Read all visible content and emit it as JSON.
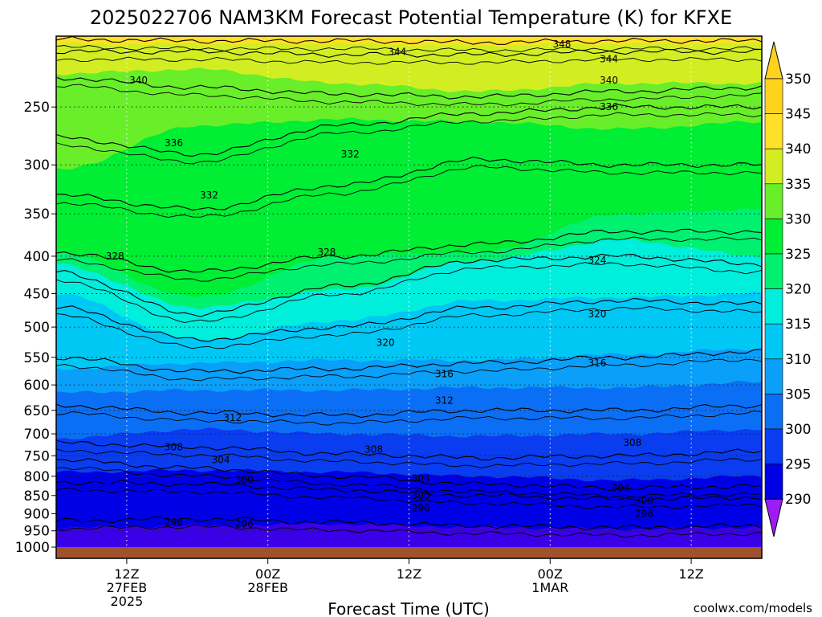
{
  "chart_data": {
    "type": "heatmap",
    "title": "2025022706 NAM3KM Forecast Potential Temperature (K) for KFXE",
    "xlabel": "Forecast Time (UTC)",
    "ylabel": "",
    "y_scale": "log",
    "y_axis_reversed": true,
    "ylim": [
      1000,
      200
    ],
    "y_ticks": [
      250,
      300,
      350,
      400,
      450,
      500,
      550,
      600,
      650,
      700,
      750,
      800,
      850,
      900,
      950,
      1000
    ],
    "x_ticks": [
      {
        "hour": 12,
        "label": "12Z",
        "sub": "27FEB",
        "sub2": "2025"
      },
      {
        "hour": 24,
        "label": "00Z",
        "sub": "28FEB",
        "sub2": ""
      },
      {
        "hour": 36,
        "label": "12Z",
        "sub": "",
        "sub2": ""
      },
      {
        "hour": 48,
        "label": "00Z",
        "sub": "1MAR",
        "sub2": ""
      },
      {
        "hour": 60,
        "label": "12Z",
        "sub": "",
        "sub2": ""
      }
    ],
    "xlim": [
      6,
      66
    ],
    "colorbar": {
      "labels": [
        290,
        295,
        300,
        305,
        310,
        315,
        320,
        325,
        330,
        335,
        340,
        345,
        350
      ],
      "colors": [
        "#9b1df2",
        "#3a00e8",
        "#0000e6",
        "#0a3cf0",
        "#0b6ff6",
        "#0a9ff8",
        "#00c8f5",
        "#00eedc",
        "#00f070",
        "#00ee33",
        "#69ee2a",
        "#d2ee22",
        "#ffe028",
        "#ffd21e"
      ]
    },
    "fill_levels": [
      {
        "value": 350,
        "p": [
          200,
          200,
          200,
          200,
          200,
          200
        ]
      },
      {
        "value": 345,
        "p": [
          205,
          205,
          205,
          206,
          205,
          205
        ]
      },
      {
        "value": 340,
        "p": [
          225,
          222,
          232,
          238,
          232,
          232
        ]
      },
      {
        "value": 335,
        "p": [
          305,
          265,
          260,
          262,
          268,
          262
        ]
      },
      {
        "value": 330,
        "p": [
          395,
          455,
          400,
          395,
          350,
          345
        ]
      },
      {
        "value": 325,
        "p": [
          410,
          470,
          445,
          405,
          380,
          400
        ]
      },
      {
        "value": 320,
        "p": [
          450,
          520,
          490,
          460,
          455,
          450
        ]
      },
      {
        "value": 315,
        "p": [
          570,
          560,
          555,
          555,
          545,
          535
        ]
      },
      {
        "value": 310,
        "p": [
          615,
          610,
          610,
          605,
          605,
          595
        ]
      },
      {
        "value": 305,
        "p": [
          710,
          690,
          700,
          705,
          700,
          690
        ]
      },
      {
        "value": 300,
        "p": [
          790,
          785,
          790,
          800,
          810,
          800
        ]
      },
      {
        "value": 295,
        "p": [
          940,
          935,
          930,
          940,
          945,
          940
        ]
      }
    ],
    "contours": [
      {
        "value": 296,
        "p": [
          920,
          915,
          925,
          935,
          940,
          935
        ]
      },
      {
        "value": 300,
        "p": [
          815,
          820,
          835,
          850,
          860,
          855
        ]
      },
      {
        "value": 304,
        "p": [
          760,
          780,
          800,
          820,
          830,
          825
        ]
      },
      {
        "value": 308,
        "p": [
          720,
          730,
          745,
          755,
          750,
          740
        ]
      },
      {
        "value": 312,
        "p": [
          640,
          655,
          660,
          650,
          650,
          640
        ]
      },
      {
        "value": 316,
        "p": [
          550,
          575,
          570,
          560,
          550,
          540
        ]
      },
      {
        "value": 320,
        "p": [
          470,
          520,
          500,
          470,
          460,
          465
        ]
      },
      {
        "value": 324,
        "p": [
          420,
          480,
          440,
          405,
          400,
          410
        ]
      },
      {
        "value": 328,
        "p": [
          395,
          420,
          400,
          385,
          370,
          370
        ]
      },
      {
        "value": 332,
        "p": [
          330,
          345,
          320,
          295,
          300,
          300
        ]
      },
      {
        "value": 336,
        "p": [
          275,
          290,
          265,
          255,
          250,
          250
        ]
      },
      {
        "value": 340,
        "p": [
          228,
          235,
          240,
          242,
          238,
          235
        ]
      },
      {
        "value": 344,
        "p": [
          210,
          210,
          212,
          212,
          210,
          210
        ]
      },
      {
        "value": 348,
        "p": [
          202,
          203,
          203,
          204,
          203,
          203
        ]
      }
    ],
    "contour_labels": [
      {
        "text": "344",
        "hour": 35,
        "p": 210
      },
      {
        "text": "348",
        "hour": 49,
        "p": 205
      },
      {
        "text": "344",
        "hour": 53,
        "p": 215
      },
      {
        "text": "340",
        "hour": 13,
        "p": 230
      },
      {
        "text": "340",
        "hour": 53,
        "p": 230
      },
      {
        "text": "336",
        "hour": 53,
        "p": 250
      },
      {
        "text": "336",
        "hour": 16,
        "p": 280
      },
      {
        "text": "332",
        "hour": 31,
        "p": 290
      },
      {
        "text": "332",
        "hour": 19,
        "p": 330
      },
      {
        "text": "328",
        "hour": 11,
        "p": 400
      },
      {
        "text": "328",
        "hour": 29,
        "p": 395
      },
      {
        "text": "324",
        "hour": 52,
        "p": 405
      },
      {
        "text": "320",
        "hour": 52,
        "p": 480
      },
      {
        "text": "320",
        "hour": 34,
        "p": 525
      },
      {
        "text": "316",
        "hour": 52,
        "p": 560
      },
      {
        "text": "316",
        "hour": 39,
        "p": 580
      },
      {
        "text": "312",
        "hour": 39,
        "p": 630
      },
      {
        "text": "312",
        "hour": 21,
        "p": 665
      },
      {
        "text": "308",
        "hour": 16,
        "p": 730
      },
      {
        "text": "308",
        "hour": 33,
        "p": 735
      },
      {
        "text": "308",
        "hour": 55,
        "p": 720
      },
      {
        "text": "304",
        "hour": 20,
        "p": 760
      },
      {
        "text": "304",
        "hour": 37,
        "p": 805
      },
      {
        "text": "304",
        "hour": 54,
        "p": 830
      },
      {
        "text": "300",
        "hour": 22,
        "p": 810
      },
      {
        "text": "300",
        "hour": 37,
        "p": 850
      },
      {
        "text": "300",
        "hour": 56,
        "p": 865
      },
      {
        "text": "296",
        "hour": 16,
        "p": 925
      },
      {
        "text": "296",
        "hour": 22,
        "p": 930
      },
      {
        "text": "296",
        "hour": 37,
        "p": 885
      },
      {
        "text": "296",
        "hour": 56,
        "p": 900
      }
    ]
  },
  "footer": {
    "credit": "coolwx.com/models",
    "credit_color": "#cc0000"
  },
  "ground_color": "#a0522d"
}
